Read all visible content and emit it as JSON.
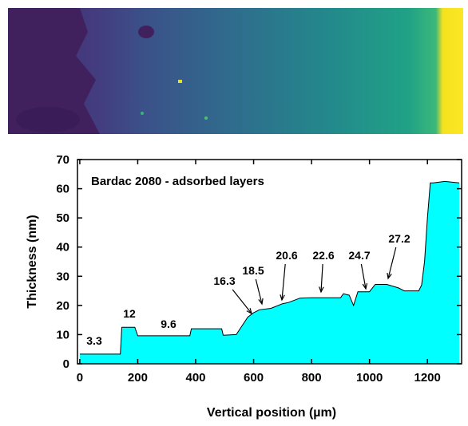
{
  "chart_data": {
    "type": "area",
    "title": "Bardac 2080 - adsorbed layers",
    "xlabel": "Vertical position (µm)",
    "ylabel": "Thickness (nm)",
    "x": [
      0,
      140,
      145,
      190,
      200,
      380,
      385,
      490,
      495,
      540,
      560,
      580,
      600,
      620,
      660,
      700,
      720,
      760,
      800,
      900,
      910,
      930,
      945,
      960,
      1000,
      1020,
      1060,
      1100,
      1120,
      1170,
      1180,
      1190,
      1200,
      1210,
      1220,
      1260,
      1310
    ],
    "values": [
      3.3,
      3.3,
      12.5,
      12.5,
      9.6,
      9.6,
      12,
      12,
      9.8,
      10,
      13,
      16,
      17.5,
      18.5,
      19,
      20.6,
      21,
      22.5,
      22.6,
      22.6,
      24,
      23.5,
      20,
      24.7,
      24.7,
      27.2,
      27.2,
      26,
      25,
      25,
      27,
      35,
      50,
      62,
      62,
      62.5,
      62
    ],
    "color": "#00ffff",
    "xlim": [
      -8,
      1318
    ],
    "ylim": [
      0,
      70
    ],
    "xticks": [
      0,
      200,
      400,
      600,
      800,
      1000,
      1200
    ],
    "yticks": [
      0,
      10,
      20,
      30,
      40,
      50,
      60,
      70
    ],
    "annotations": [
      "3.3",
      "12",
      "9.6",
      "16.3",
      "18.5",
      "20.6",
      "22.6",
      "24.7",
      "27.2"
    ]
  }
}
